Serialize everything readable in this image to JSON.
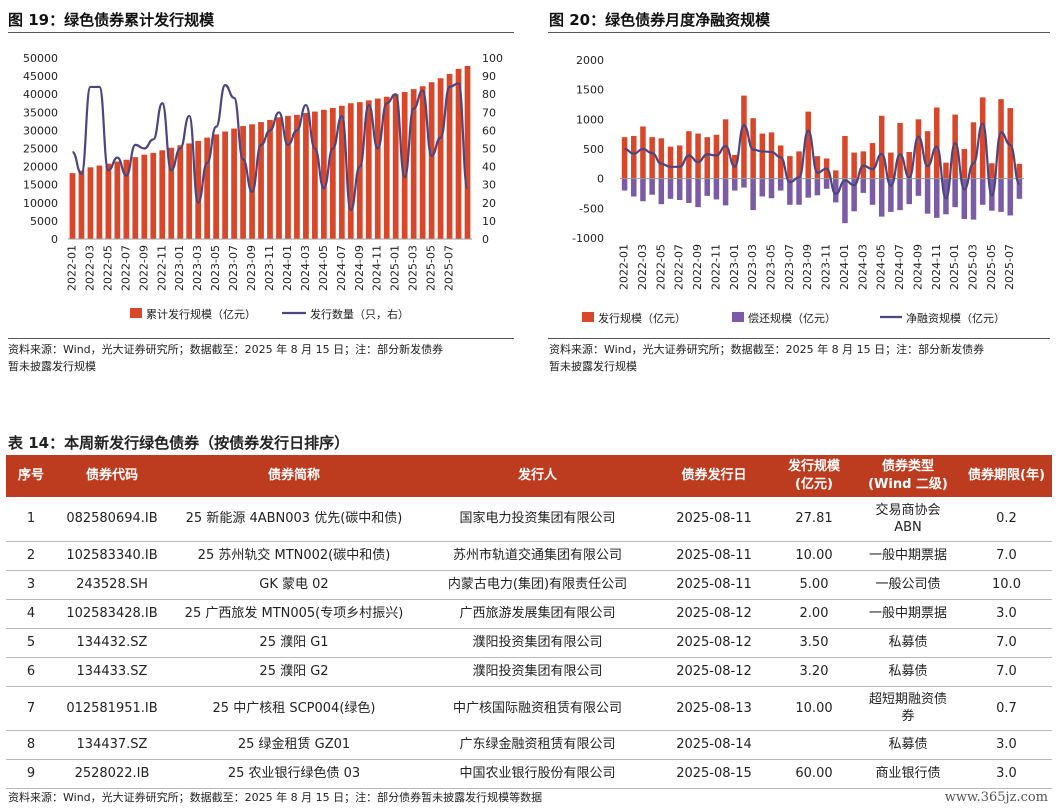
{
  "fig19": {
    "title": "图 19：绿色债券累计发行规模",
    "legend_bar": "累计发行规模（亿元）",
    "legend_line": "发行数量（只，右）",
    "source_line1": "资料来源：Wind，光大证券研究所；数据截至：2025 年 8 月 15 日；注：部分新发债券",
    "source_line2": "暂未披露发行规模"
  },
  "fig20": {
    "title": "图 20：绿色债券月度净融资规模",
    "legend_issue": "发行规模（亿元）",
    "legend_repay": "偿还规模（亿元）",
    "legend_net": "净融资规模（亿元）",
    "source_line1": "资料来源：Wind，光大证券研究所；数据截至：2025 年 8 月 15 日；注：部分新发债券",
    "source_line2": "暂未披露发行规模"
  },
  "chart_data": [
    {
      "type": "bar",
      "title": "图 19：绿色债券累计发行规模",
      "xlabel": "",
      "ylabel": "",
      "ylim": [
        0,
        50000
      ],
      "y2lim": [
        0,
        100
      ],
      "y_ticks": [
        0,
        5000,
        10000,
        15000,
        20000,
        25000,
        30000,
        35000,
        40000,
        45000,
        50000
      ],
      "y2_ticks": [
        0,
        10,
        20,
        30,
        40,
        50,
        60,
        70,
        80,
        90,
        100
      ],
      "x_tick_labels": [
        "2022-01",
        "2022-03",
        "2022-05",
        "2022-07",
        "2022-09",
        "2022-11",
        "2023-01",
        "2023-03",
        "2023-05",
        "2023-07",
        "2023-09",
        "2023-11",
        "2024-01",
        "2024-03",
        "2024-05",
        "2024-07",
        "2024-09",
        "2024-11",
        "2025-01",
        "2025-03",
        "2025-05",
        "2025-07"
      ],
      "legend_position": "bottom",
      "series": [
        {
          "name": "累计发行规模（亿元）",
          "kind": "bar",
          "color": "#d9472b",
          "values": [
            18200,
            18900,
            19800,
            20300,
            20800,
            21400,
            21900,
            22600,
            23300,
            23800,
            24500,
            25200,
            25900,
            26400,
            27100,
            28000,
            28900,
            29700,
            30500,
            31200,
            31700,
            32300,
            32900,
            33600,
            34000,
            34300,
            34800,
            35200,
            35700,
            36200,
            36800,
            37500,
            37800,
            38300,
            38800,
            39300,
            40000,
            40600,
            41400,
            42200,
            43300,
            44400,
            45600,
            47000,
            47800
          ]
        },
        {
          "name": "发行数量（只，右）",
          "kind": "line",
          "color": "#4b4580",
          "axis": "right",
          "values": [
            48,
            36,
            84,
            84,
            38,
            45,
            35,
            52,
            50,
            55,
            75,
            38,
            50,
            68,
            20,
            42,
            62,
            85,
            78,
            44,
            26,
            52,
            60,
            70,
            52,
            60,
            74,
            50,
            28,
            50,
            68,
            16,
            40,
            74,
            50,
            75,
            80,
            34,
            72,
            82,
            46,
            56,
            84,
            86,
            28
          ]
        }
      ]
    },
    {
      "type": "bar",
      "title": "图 20：绿色债券月度净融资规模",
      "xlabel": "",
      "ylabel": "",
      "ylim": [
        -1000,
        2000
      ],
      "y_ticks": [
        -1000,
        -500,
        0,
        500,
        1000,
        1500,
        2000
      ],
      "x_tick_labels": [
        "2022-01",
        "2022-03",
        "2022-05",
        "2022-07",
        "2022-09",
        "2022-11",
        "2023-01",
        "2023-03",
        "2023-05",
        "2023-07",
        "2023-09",
        "2023-11",
        "2024-01",
        "2024-03",
        "2024-05",
        "2024-07",
        "2024-09",
        "2024-11",
        "2025-01",
        "2025-03",
        "2025-05",
        "2025-07"
      ],
      "legend_position": "bottom",
      "series": [
        {
          "name": "发行规模（亿元）",
          "kind": "bar",
          "color": "#d9472b",
          "values": [
            700,
            720,
            880,
            700,
            680,
            540,
            560,
            800,
            760,
            700,
            740,
            1000,
            400,
            1400,
            1020,
            760,
            780,
            560,
            380,
            460,
            1130,
            380,
            340,
            140,
            720,
            440,
            460,
            600,
            1060,
            440,
            940,
            450,
            1000,
            800,
            1200,
            270,
            1080,
            500,
            950,
            1370,
            260,
            1340,
            1190,
            250
          ]
        },
        {
          "name": "偿还规模（亿元）",
          "kind": "bar",
          "color": "#7b5aa6",
          "values": [
            -200,
            -300,
            -380,
            -270,
            -430,
            -340,
            -360,
            -410,
            -480,
            -290,
            -350,
            -450,
            -200,
            -150,
            -530,
            -300,
            -330,
            -200,
            -440,
            -440,
            -320,
            -280,
            -170,
            -400,
            -750,
            -550,
            -240,
            -440,
            -640,
            -560,
            -530,
            -430,
            -290,
            -590,
            -660,
            -600,
            -480,
            -680,
            -690,
            -440,
            -540,
            -560,
            -620,
            -340
          ]
        },
        {
          "name": "净融资规模（亿元）",
          "kind": "line",
          "color": "#4b4580",
          "values": [
            500,
            420,
            500,
            430,
            250,
            200,
            200,
            390,
            280,
            410,
            390,
            550,
            200,
            900,
            490,
            460,
            450,
            360,
            -60,
            20,
            810,
            100,
            170,
            -260,
            -30,
            -110,
            220,
            160,
            420,
            -120,
            410,
            20,
            710,
            210,
            540,
            -330,
            600,
            -180,
            260,
            930,
            -280,
            780,
            570,
            -90
          ]
        }
      ]
    }
  ],
  "table": {
    "title": "表 14：本周新发行绿色债券（按债券发行日排序）",
    "headers": [
      "序号",
      "债券代码",
      "债券简称",
      "发行人",
      "债券发行日",
      "发行规模\n(亿元)",
      "债券类型\n(Wind 二级)",
      "债券期限(年)"
    ],
    "rows": [
      [
        "1",
        "082580694.IB",
        "25 新能源 4ABN003 优先(碳中和债)",
        "国家电力投资集团有限公司",
        "2025-08-11",
        "27.81",
        "交易商协会\nABN",
        "0.2"
      ],
      [
        "2",
        "102583340.IB",
        "25 苏州轨交 MTN002(碳中和债)",
        "苏州市轨道交通集团有限公司",
        "2025-08-11",
        "10.00",
        "一般中期票据",
        "7.0"
      ],
      [
        "3",
        "243528.SH",
        "GK 蒙电 02",
        "内蒙古电力(集团)有限责任公司",
        "2025-08-11",
        "5.00",
        "一般公司债",
        "10.0"
      ],
      [
        "4",
        "102583428.IB",
        "25 广西旅发 MTN005(专项乡村振兴)",
        "广西旅游发展集团有限公司",
        "2025-08-12",
        "2.00",
        "一般中期票据",
        "3.0"
      ],
      [
        "5",
        "134432.SZ",
        "25 濮阳 G1",
        "濮阳投资集团有限公司",
        "2025-08-12",
        "3.50",
        "私募债",
        "7.0"
      ],
      [
        "6",
        "134433.SZ",
        "25 濮阳 G2",
        "濮阳投资集团有限公司",
        "2025-08-12",
        "3.20",
        "私募债",
        "7.0"
      ],
      [
        "7",
        "012581951.IB",
        "25 中广核租 SCP004(绿色)",
        "中广核国际融资租赁有限公司",
        "2025-08-13",
        "10.00",
        "超短期融资债\n券",
        "0.7"
      ],
      [
        "8",
        "134437.SZ",
        "25 绿金租赁 GZ01",
        "广东绿金融资租赁有限公司",
        "2025-08-14",
        "",
        "私募债",
        "3.0"
      ],
      [
        "9",
        "2528022.IB",
        "25 农业银行绿色债 03",
        "中国农业银行股份有限公司",
        "2025-08-15",
        "60.00",
        "商业银行债",
        "3.0"
      ]
    ],
    "footnote": "资料来源：Wind，光大证券研究所；数据截至：2025 年 8 月 15 日；注：部分债券暂未披露发行规模等数据"
  },
  "watermark": "www.365jz.com"
}
